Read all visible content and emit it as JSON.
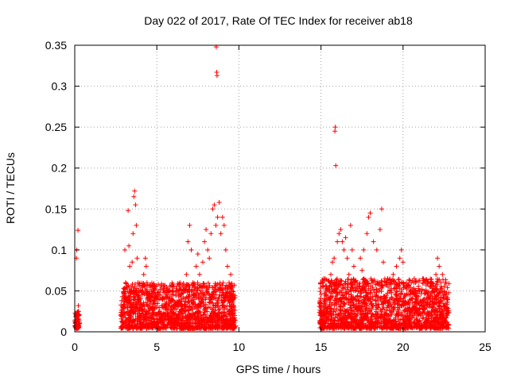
{
  "chart_data": {
    "type": "scatter",
    "title": "Day 022 of 2017, Rate Of TEC Index for receiver ab18",
    "xlabel": "GPS time / hours",
    "ylabel": "ROTI / TECUs",
    "xlim": [
      0,
      25
    ],
    "ylim": [
      0,
      0.35
    ],
    "xticks": [
      0,
      5,
      10,
      15,
      20,
      25
    ],
    "xtick_labels": [
      "0",
      "5",
      "10",
      "15",
      "20",
      "25"
    ],
    "yticks": [
      0,
      0.05,
      0.1,
      0.15,
      0.2,
      0.25,
      0.3,
      0.35
    ],
    "ytick_labels": [
      "0",
      "0.05",
      "0.1",
      "0.15",
      "0.2",
      "0.25",
      "0.3",
      "0.35"
    ],
    "grid": true,
    "marker": "+",
    "color": "#ff0000",
    "series": [
      {
        "points": [
          [
            0.05,
            0.012
          ],
          [
            0.1,
            0.02
          ],
          [
            0.15,
            0.008
          ],
          [
            0.1,
            0.09
          ],
          [
            0.12,
            0.1
          ],
          [
            0.2,
            0.124
          ],
          [
            0.22,
            0.032
          ],
          [
            0.18,
            0.015
          ],
          [
            0.05,
            0.005
          ],
          [
            0.25,
            0.01
          ],
          [
            2.9,
            0.02
          ],
          [
            3.0,
            0.04
          ],
          [
            3.05,
            0.1
          ],
          [
            3.1,
            0.06
          ],
          [
            3.2,
            0.03
          ],
          [
            3.25,
            0.148
          ],
          [
            3.3,
            0.105
          ],
          [
            3.35,
            0.08
          ],
          [
            3.4,
            0.05
          ],
          [
            3.45,
            0.025
          ],
          [
            3.5,
            0.085
          ],
          [
            3.55,
            0.12
          ],
          [
            3.6,
            0.165
          ],
          [
            3.65,
            0.172
          ],
          [
            3.7,
            0.155
          ],
          [
            3.75,
            0.13
          ],
          [
            3.8,
            0.09
          ],
          [
            3.85,
            0.06
          ],
          [
            3.9,
            0.04
          ],
          [
            3.95,
            0.03
          ],
          [
            4.0,
            0.02
          ],
          [
            4.1,
            0.05
          ],
          [
            4.2,
            0.07
          ],
          [
            4.3,
            0.09
          ],
          [
            4.35,
            0.08
          ],
          [
            4.4,
            0.06
          ],
          [
            4.5,
            0.04
          ],
          [
            4.6,
            0.03
          ],
          [
            4.7,
            0.02
          ],
          [
            4.8,
            0.015
          ],
          [
            5.0,
            0.03
          ],
          [
            5.2,
            0.045
          ],
          [
            5.3,
            0.055
          ],
          [
            5.5,
            0.03
          ],
          [
            5.7,
            0.02
          ],
          [
            5.9,
            0.04
          ],
          [
            6.0,
            0.05
          ],
          [
            6.2,
            0.035
          ],
          [
            6.4,
            0.025
          ],
          [
            6.6,
            0.05
          ],
          [
            6.8,
            0.07
          ],
          [
            6.9,
            0.11
          ],
          [
            7.0,
            0.13
          ],
          [
            7.1,
            0.1
          ],
          [
            7.2,
            0.06
          ],
          [
            7.3,
            0.045
          ],
          [
            7.4,
            0.08
          ],
          [
            7.5,
            0.095
          ],
          [
            7.6,
            0.07
          ],
          [
            7.7,
            0.05
          ],
          [
            7.8,
            0.085
          ],
          [
            7.9,
            0.11
          ],
          [
            8.0,
            0.125
          ],
          [
            8.1,
            0.1
          ],
          [
            8.2,
            0.09
          ],
          [
            8.3,
            0.12
          ],
          [
            8.4,
            0.15
          ],
          [
            8.5,
            0.155
          ],
          [
            8.6,
            0.13
          ],
          [
            8.62,
            0.348
          ],
          [
            8.65,
            0.317
          ],
          [
            8.67,
            0.313
          ],
          [
            8.7,
            0.14
          ],
          [
            8.8,
            0.158
          ],
          [
            8.9,
            0.12
          ],
          [
            9.0,
            0.14
          ],
          [
            9.1,
            0.13
          ],
          [
            9.2,
            0.1
          ],
          [
            9.3,
            0.08
          ],
          [
            9.4,
            0.06
          ],
          [
            9.5,
            0.07
          ],
          [
            9.6,
            0.05
          ],
          [
            9.7,
            0.03
          ],
          [
            9.75,
            0.02
          ],
          [
            15.0,
            0.025
          ],
          [
            15.1,
            0.06
          ],
          [
            15.2,
            0.04
          ],
          [
            15.3,
            0.03
          ],
          [
            15.5,
            0.05
          ],
          [
            15.6,
            0.07
          ],
          [
            15.7,
            0.085
          ],
          [
            15.8,
            0.09
          ],
          [
            15.85,
            0.245
          ],
          [
            15.87,
            0.25
          ],
          [
            15.9,
            0.203
          ],
          [
            16.0,
            0.11
          ],
          [
            16.1,
            0.12
          ],
          [
            16.2,
            0.125
          ],
          [
            16.3,
            0.11
          ],
          [
            16.4,
            0.1
          ],
          [
            16.5,
            0.115
          ],
          [
            16.6,
            0.09
          ],
          [
            16.7,
            0.07
          ],
          [
            16.8,
            0.13
          ],
          [
            16.9,
            0.1
          ],
          [
            17.0,
            0.08
          ],
          [
            17.2,
            0.06
          ],
          [
            17.4,
            0.09
          ],
          [
            17.5,
            0.075
          ],
          [
            17.6,
            0.1
          ],
          [
            17.8,
            0.12
          ],
          [
            17.9,
            0.14
          ],
          [
            18.0,
            0.145
          ],
          [
            18.2,
            0.11
          ],
          [
            18.4,
            0.1
          ],
          [
            18.6,
            0.125
          ],
          [
            18.7,
            0.15
          ],
          [
            18.8,
            0.085
          ],
          [
            19.0,
            0.06
          ],
          [
            19.2,
            0.05
          ],
          [
            19.4,
            0.07
          ],
          [
            19.6,
            0.08
          ],
          [
            19.8,
            0.09
          ],
          [
            19.9,
            0.1
          ],
          [
            20.0,
            0.085
          ],
          [
            20.2,
            0.06
          ],
          [
            20.5,
            0.04
          ],
          [
            20.8,
            0.03
          ],
          [
            21.0,
            0.05
          ],
          [
            21.2,
            0.065
          ],
          [
            21.5,
            0.04
          ],
          [
            21.8,
            0.05
          ],
          [
            22.0,
            0.07
          ],
          [
            22.1,
            0.09
          ],
          [
            22.2,
            0.08
          ],
          [
            22.3,
            0.06
          ],
          [
            22.4,
            0.07
          ],
          [
            22.5,
            0.045
          ],
          [
            22.6,
            0.03
          ],
          [
            22.7,
            0.02
          ]
        ]
      }
    ],
    "dense_ranges": [
      {
        "x_start": 0.0,
        "x_end": 0.3,
        "y_min": 0.004,
        "y_max": 0.025
      },
      {
        "x_start": 2.8,
        "x_end": 9.8,
        "y_min": 0.004,
        "y_max": 0.06
      },
      {
        "x_start": 14.9,
        "x_end": 22.8,
        "y_min": 0.004,
        "y_max": 0.065
      }
    ]
  }
}
